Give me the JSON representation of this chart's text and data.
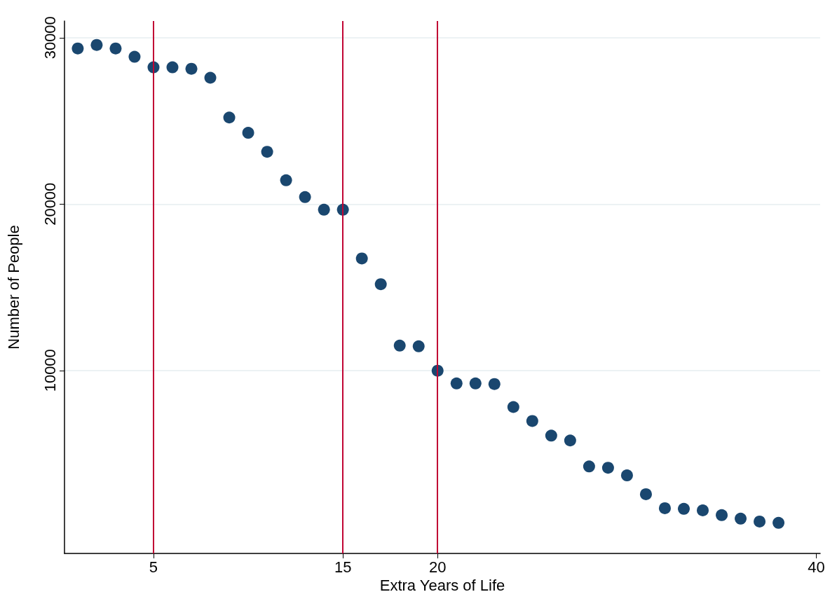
{
  "chart_data": {
    "type": "scatter",
    "xlabel": "Extra Years of Life",
    "ylabel": "Number of People",
    "x": [
      1,
      2,
      3,
      4,
      5,
      6,
      7,
      8,
      9,
      10,
      11,
      12,
      13,
      14,
      15,
      16,
      17,
      18,
      19,
      20,
      21,
      22,
      23,
      24,
      25,
      26,
      27,
      28,
      29,
      30,
      31,
      32,
      33,
      34,
      35,
      36,
      37,
      38
    ],
    "series": [
      {
        "color": "#1a476f",
        "values": [
          29350,
          29560,
          29350,
          28850,
          28220,
          28220,
          28130,
          27590,
          25200,
          24280,
          23140,
          21430,
          20420,
          19660,
          19660,
          16730,
          15180,
          11490,
          11450,
          9980,
          9220,
          9220,
          9180,
          7800,
          6960,
          6080,
          5790,
          4230,
          4150,
          3690,
          2560,
          1720,
          1680,
          1590,
          1300,
          1090,
          920,
          840
        ]
      }
    ],
    "xlim": [
      0.3,
      40.2
    ],
    "xticks": [
      5,
      15,
      20,
      40
    ],
    "ylim": [
      -1000,
      31000
    ],
    "yticks": [
      10000,
      20000,
      30000
    ],
    "grid": "y",
    "marker": "circle",
    "ref_lines": [
      {
        "axis": "x",
        "value": 5,
        "color": "#c10534"
      },
      {
        "axis": "x",
        "value": 15,
        "color": "#c10534"
      },
      {
        "axis": "x",
        "value": 20,
        "color": "#c10534"
      }
    ]
  }
}
